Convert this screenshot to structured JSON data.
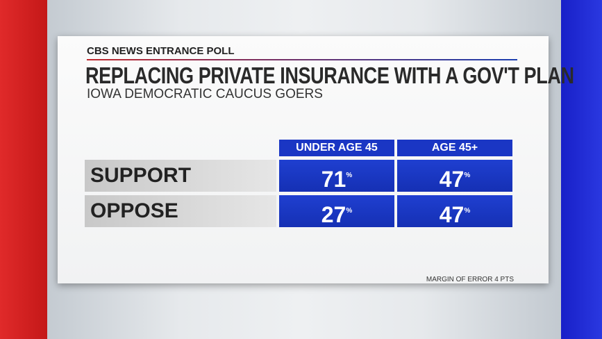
{
  "header": {
    "brand": "CBS NEWS ENTRANCE POLL",
    "title": "REPLACING PRIVATE INSURANCE WITH A GOV'T PLAN",
    "subtitle": "IOWA DEMOCRATIC CAUCUS GOERS"
  },
  "table": {
    "columns": [
      "UNDER AGE 45",
      "AGE 45+"
    ],
    "rows": [
      {
        "label": "SUPPORT",
        "cells": [
          {
            "value": 71,
            "unit": "%"
          },
          {
            "value": 47,
            "unit": "%"
          }
        ]
      },
      {
        "label": "OPPOSE",
        "cells": [
          {
            "value": 27,
            "unit": "%"
          },
          {
            "value": 47,
            "unit": "%"
          }
        ]
      }
    ]
  },
  "footer": {
    "note": "MARGIN OF ERROR 4 PTS"
  }
}
